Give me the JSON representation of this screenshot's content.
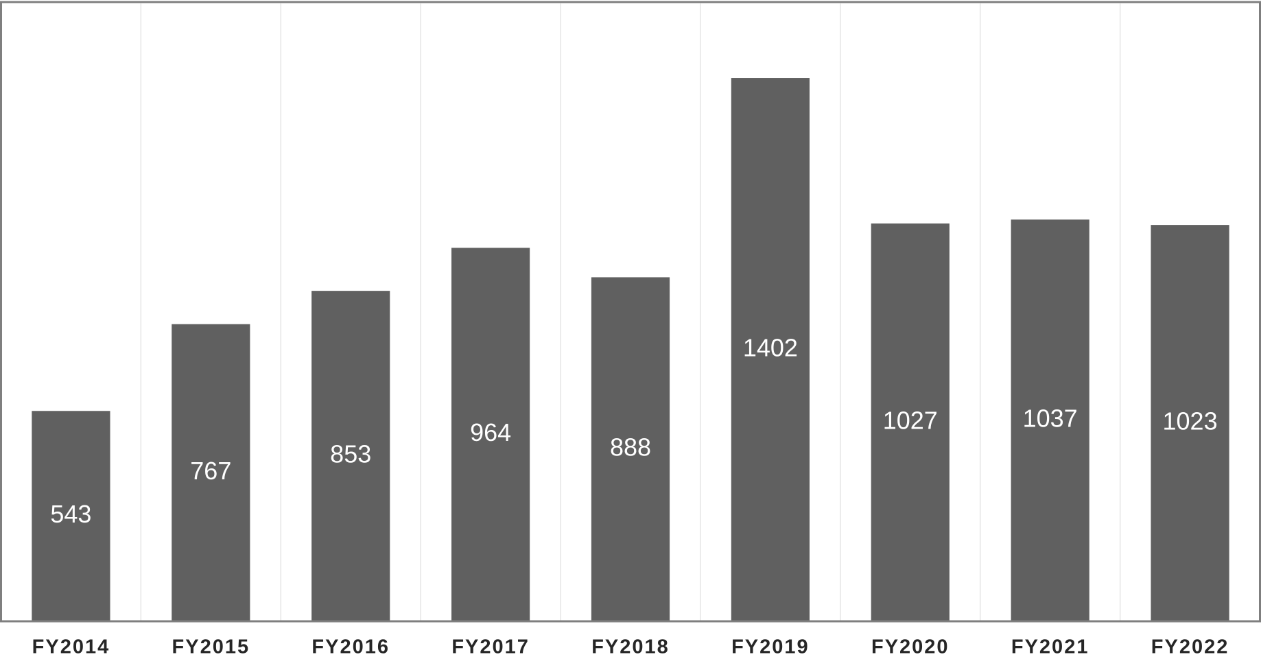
{
  "chart_data": {
    "type": "bar",
    "categories": [
      "FY2014",
      "FY2015",
      "FY2016",
      "FY2017",
      "FY2018",
      "FY2019",
      "FY2020",
      "FY2021",
      "FY2022"
    ],
    "values": [
      543,
      767,
      853,
      964,
      888,
      1402,
      1027,
      1037,
      1023
    ],
    "title": "",
    "xlabel": "",
    "ylabel": "",
    "ylim": [
      0,
      1600
    ],
    "grid": "vertical separators only",
    "legend": "none",
    "colors": {
      "bar": "#606060",
      "value_label": "#ffffff",
      "category_label": "#262626",
      "frame": "#7f7f7f",
      "gridline": "#dedede"
    }
  }
}
